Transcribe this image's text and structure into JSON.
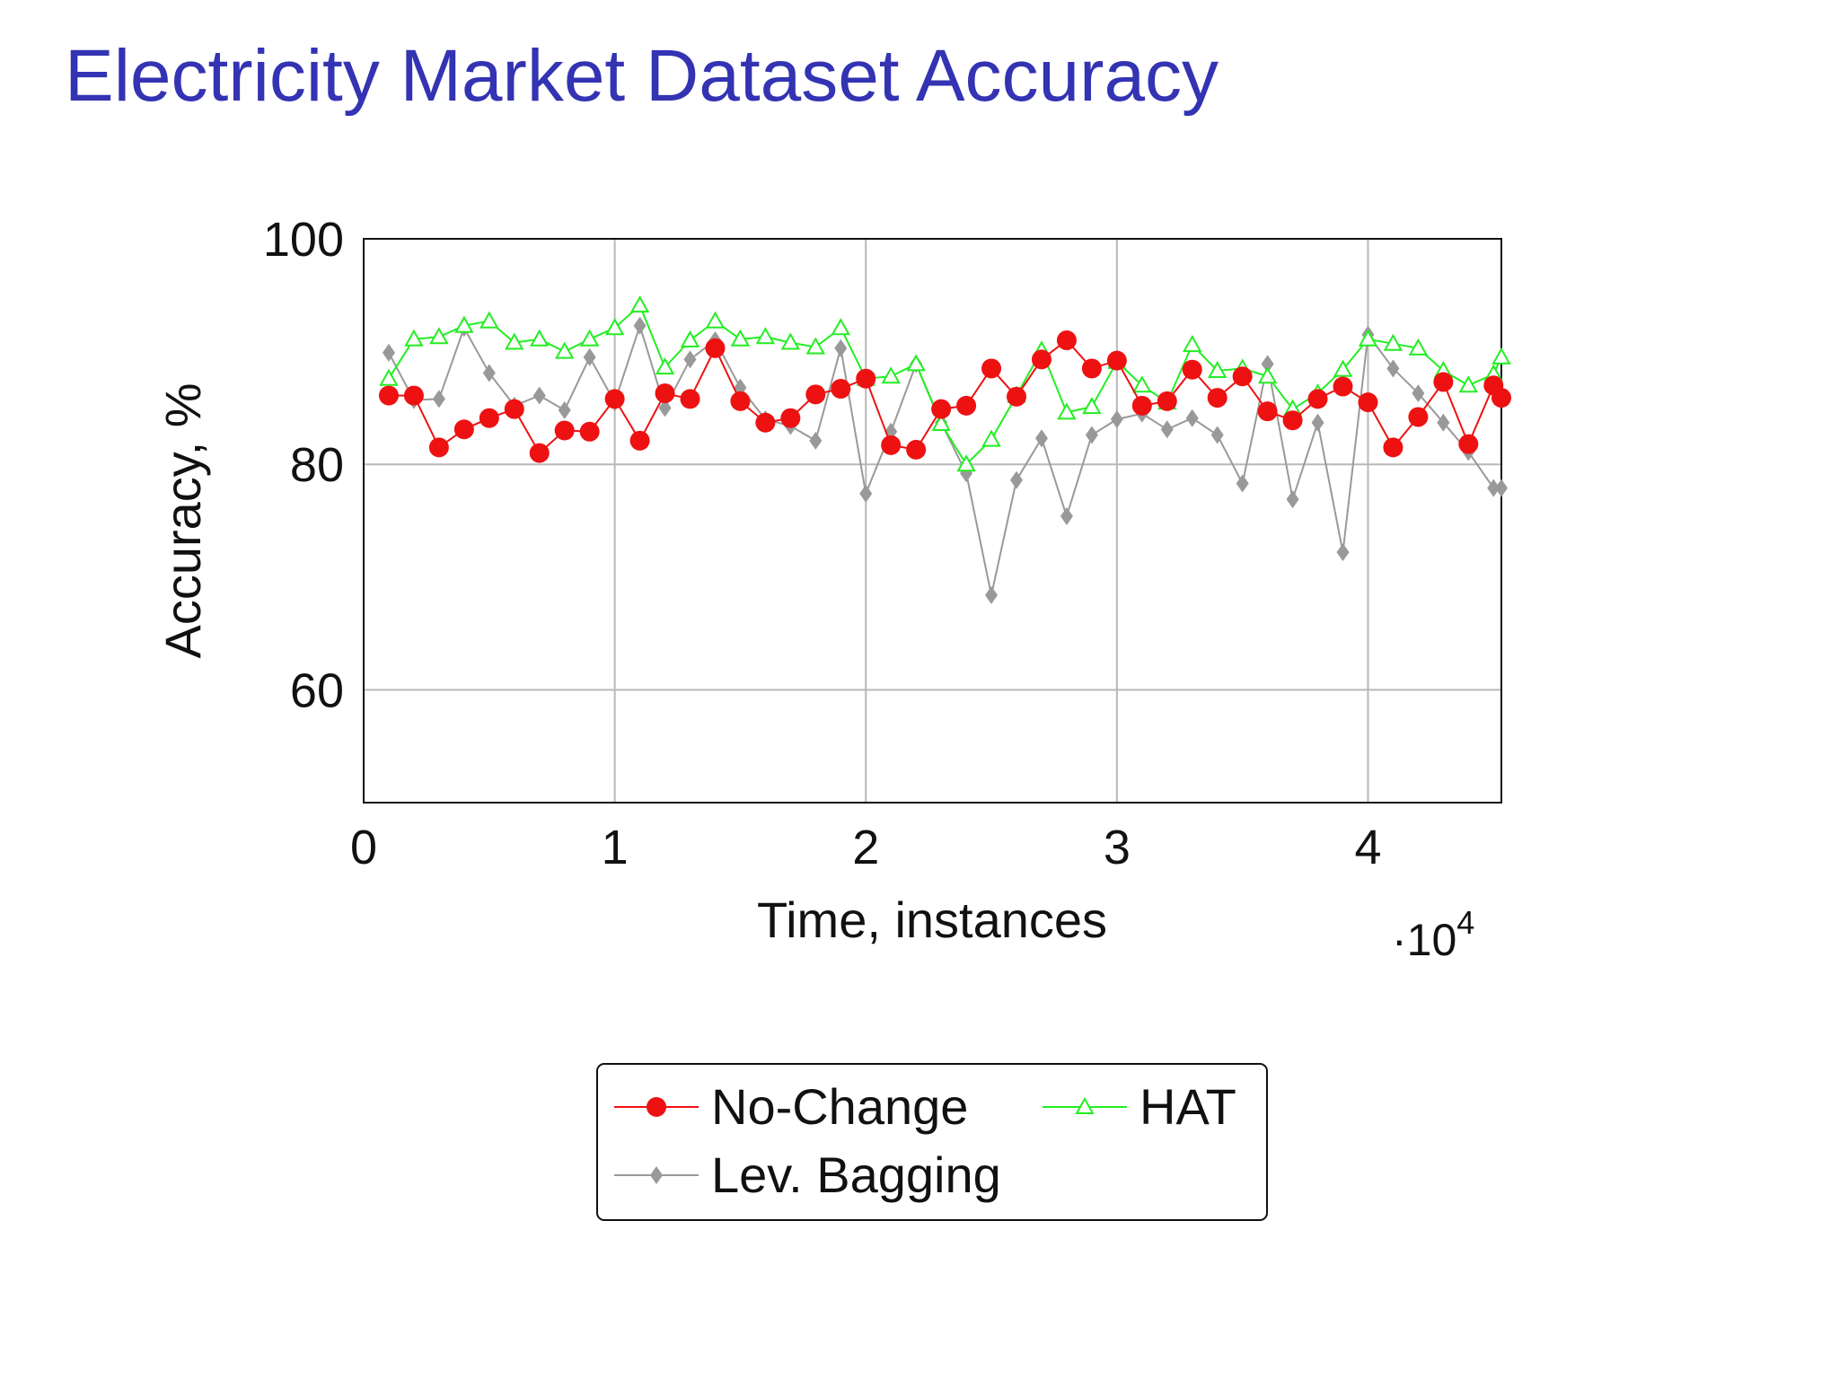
{
  "slide": {
    "title": "Electricity Market Dataset Accuracy"
  },
  "chart_data": {
    "type": "line",
    "xlabel": "Time, instances",
    "x_multiplier_label": "·10",
    "x_multiplier_exponent": "4",
    "ylabel": "Accuracy, %",
    "xlim": [
      0,
      45312
    ],
    "ylim": [
      50,
      100
    ],
    "x_ticks": [
      {
        "value": 0,
        "label": "0"
      },
      {
        "value": 10000,
        "label": "1"
      },
      {
        "value": 20000,
        "label": "2"
      },
      {
        "value": 30000,
        "label": "3"
      },
      {
        "value": 40000,
        "label": "4"
      }
    ],
    "y_ticks": [
      {
        "value": 60,
        "label": "60"
      },
      {
        "value": 80,
        "label": "80"
      },
      {
        "value": 100,
        "label": "100"
      }
    ],
    "grid": true,
    "legend_position": "bottom-center",
    "x": [
      1000,
      2000,
      3000,
      4000,
      5000,
      6000,
      7000,
      8000,
      9000,
      10000,
      11000,
      12000,
      13000,
      14000,
      15000,
      16000,
      17000,
      18000,
      19000,
      20000,
      21000,
      22000,
      23000,
      24000,
      25000,
      26000,
      27000,
      28000,
      29000,
      30000,
      31000,
      32000,
      33000,
      34000,
      35000,
      36000,
      37000,
      38000,
      39000,
      40000,
      41000,
      42000,
      43000,
      44000,
      45000,
      45312
    ],
    "series": [
      {
        "name": "No-Change",
        "color": "#ee1111",
        "marker": "circle",
        "values": [
          86.1,
          86.1,
          81.5,
          83.1,
          84.1,
          84.9,
          81.0,
          83.0,
          82.9,
          85.8,
          82.1,
          86.3,
          85.8,
          90.3,
          85.6,
          83.7,
          84.1,
          86.2,
          86.7,
          87.6,
          81.7,
          81.3,
          84.9,
          85.2,
          88.5,
          86.0,
          89.3,
          91.0,
          88.5,
          89.2,
          85.2,
          85.6,
          88.4,
          85.9,
          87.8,
          84.7,
          83.9,
          85.8,
          86.9,
          85.5,
          81.5,
          84.2,
          87.3,
          81.8,
          87.0,
          85.9
        ]
      },
      {
        "name": "HAT",
        "color": "#22ee22",
        "marker": "triangle",
        "values": [
          87.6,
          91.1,
          91.3,
          92.3,
          92.7,
          90.8,
          91.1,
          90.0,
          91.1,
          92.1,
          94.1,
          88.6,
          91.0,
          92.7,
          91.1,
          91.3,
          90.8,
          90.4,
          92.1,
          87.6,
          87.8,
          88.9,
          83.6,
          80.0,
          82.2,
          86.1,
          90.1,
          84.6,
          85.1,
          89.1,
          87.0,
          85.5,
          90.6,
          88.3,
          88.5,
          87.8,
          84.9,
          86.3,
          88.4,
          91.1,
          90.7,
          90.3,
          88.3,
          87.0,
          88.0,
          89.5
        ]
      },
      {
        "name": "Lev. Bagging",
        "color": "#999999",
        "marker": "diamond",
        "values": [
          89.9,
          85.7,
          85.8,
          92.1,
          88.1,
          85.2,
          86.1,
          84.8,
          89.5,
          85.5,
          92.3,
          85.0,
          89.3,
          91.0,
          86.8,
          84.0,
          83.4,
          82.1,
          90.3,
          77.4,
          82.9,
          88.9,
          83.7,
          79.2,
          68.4,
          78.6,
          82.3,
          75.4,
          82.6,
          84.0,
          84.5,
          83.1,
          84.1,
          82.6,
          78.3,
          88.9,
          76.9,
          83.7,
          72.2,
          91.5,
          88.5,
          86.3,
          83.7,
          81.1,
          77.9,
          77.9
        ]
      }
    ]
  }
}
